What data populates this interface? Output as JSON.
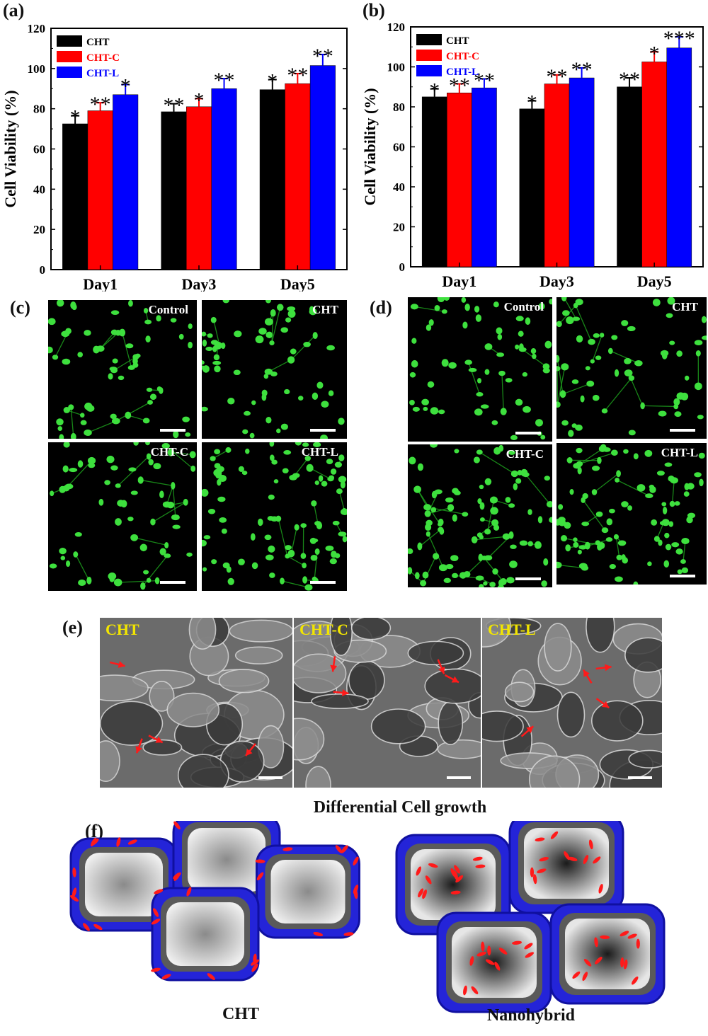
{
  "panels": {
    "a": "(a)",
    "b": "(b)",
    "c": "(c)",
    "d": "(d)",
    "e": "(e)",
    "f": "(f)"
  },
  "chart_data": [
    {
      "type": "bar",
      "panel": "(a)",
      "categories": [
        "Day1",
        "Day3",
        "Day5"
      ],
      "ylabel": "Cell Viability (%)",
      "ylim": [
        0,
        120
      ],
      "yticks": [
        0,
        20,
        40,
        60,
        80,
        100,
        120
      ],
      "legend": "top-left",
      "series": [
        {
          "name": "CHT",
          "color": "#000000",
          "values": [
            72.5,
            78.5,
            89.5
          ],
          "errors": [
            4,
            4,
            5
          ],
          "sig": [
            "*",
            "**",
            "*"
          ]
        },
        {
          "name": "CHT-C",
          "color": "#ff0000",
          "values": [
            79,
            81,
            92.5
          ],
          "errors": [
            4,
            4,
            5
          ],
          "sig": [
            "**",
            "*",
            "**"
          ]
        },
        {
          "name": "CHT-L",
          "color": "#0000ff",
          "values": [
            87,
            90,
            101.5
          ],
          "errors": [
            5,
            5,
            5.5
          ],
          "sig": [
            "*",
            "**",
            "**"
          ]
        }
      ]
    },
    {
      "type": "bar",
      "panel": "(b)",
      "categories": [
        "Day1",
        "Day3",
        "Day5"
      ],
      "ylabel": "Cell Viability (%)",
      "ylim": [
        0,
        120
      ],
      "yticks": [
        0,
        20,
        40,
        60,
        80,
        100,
        120
      ],
      "legend": "top-left",
      "series": [
        {
          "name": "CHT",
          "color": "#000000",
          "values": [
            85,
            79,
            90
          ],
          "errors": [
            4,
            4,
            4.5
          ],
          "sig": [
            "*",
            "*",
            "**"
          ]
        },
        {
          "name": "CHT-C",
          "color": "#ff0000",
          "values": [
            87,
            91.5,
            102.5
          ],
          "errors": [
            4.5,
            4.5,
            5
          ],
          "sig": [
            "**",
            "**",
            "*"
          ]
        },
        {
          "name": "CHT-L",
          "color": "#0000ff",
          "values": [
            89.5,
            94.5,
            109.5
          ],
          "errors": [
            4.5,
            5,
            5.5
          ],
          "sig": [
            "**",
            "**",
            "***"
          ]
        }
      ]
    }
  ],
  "fluorescence_c": [
    "Control",
    "CHT",
    "CHT-C",
    "CHT-L"
  ],
  "fluorescence_d": [
    "Control",
    "CHT",
    "CHT-C",
    "CHT-L"
  ],
  "sem_e": [
    "CHT",
    "CHT-C",
    "CHT-L"
  ],
  "sem_caption": "Differential Cell growth",
  "schematic_f": {
    "left": "CHT",
    "right": "Nanohybrid"
  }
}
